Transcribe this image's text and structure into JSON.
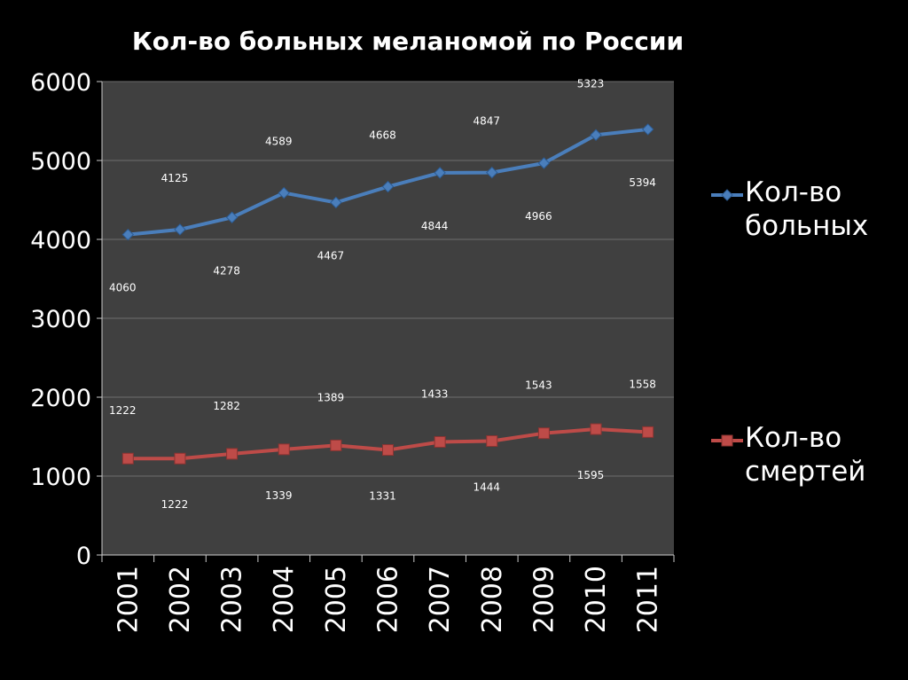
{
  "colors": {
    "background": "#000000",
    "plot_area": "#404040",
    "gridline": "#6e6e6e",
    "text": "#ffffff",
    "series_sick": "#4a7ebb",
    "series_deaths": "#be4b48"
  },
  "chart_data": {
    "type": "line",
    "title": "Кол-во больных меланомой по России",
    "xlabel": "",
    "ylabel": "",
    "x": [
      "2001",
      "2002",
      "2003",
      "2004",
      "2005",
      "2006",
      "2007",
      "2008",
      "2009",
      "2010",
      "2011"
    ],
    "ylim": [
      0,
      6000
    ],
    "yticks": [
      "0",
      "1000",
      "2000",
      "3000",
      "4000",
      "5000",
      "6000"
    ],
    "grid": true,
    "legend_position": "right",
    "series": [
      {
        "name": "Кол-во больных",
        "marker": "diamond",
        "color": "#4a7ebb",
        "values": [
          4060,
          4125,
          4278,
          4589,
          4467,
          4668,
          4844,
          4847,
          4966,
          5323,
          5394
        ],
        "labels": [
          "4060",
          "4125",
          "4278",
          "4589",
          "4467",
          "4668",
          "4844",
          "4847",
          "4966",
          "5323",
          "5394"
        ]
      },
      {
        "name": "Кол-во смертей",
        "marker": "square",
        "color": "#be4b48",
        "values": [
          1222,
          1222,
          1282,
          1339,
          1389,
          1331,
          1433,
          1444,
          1543,
          1595,
          1558
        ],
        "labels": [
          "1222",
          "1222",
          "1282",
          "1339",
          "1389",
          "1331",
          "1433",
          "1444",
          "1543",
          "1595",
          "1558"
        ]
      }
    ]
  },
  "legend": {
    "sick_line1": "Кол-во",
    "sick_line2": "больных",
    "deaths_line1": "Кол-во",
    "deaths_line2": "смертей"
  }
}
